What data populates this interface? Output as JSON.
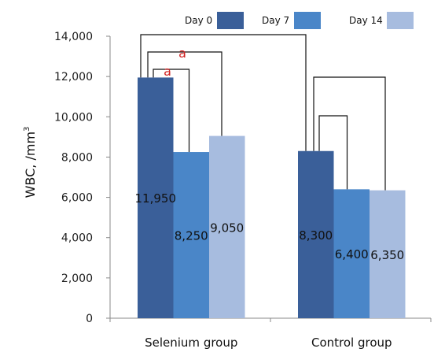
{
  "chart_data": {
    "type": "bar",
    "categories": [
      "Selenium   group",
      "Control   group"
    ],
    "series": [
      {
        "name": "Day 0",
        "values": [
          11950,
          8300
        ],
        "labels": [
          "11,950",
          "8,300"
        ],
        "color": "#3a5f99"
      },
      {
        "name": "Day 7",
        "values": [
          8250,
          6400
        ],
        "labels": [
          "8,250",
          "6,400"
        ],
        "color": "#4a86c8"
      },
      {
        "name": "Day 14",
        "values": [
          9050,
          6350
        ],
        "labels": [
          "9,050",
          "6,350"
        ],
        "color": "#a7bcdf"
      }
    ],
    "ylabel_main": "WBC, /mm",
    "ylabel_sup": "3",
    "ylim": [
      0,
      14000
    ],
    "yticks": [
      "0",
      "2,000",
      "4,000",
      "6,000",
      "8,000",
      "10,000",
      "12,000",
      "14,000"
    ],
    "legend_position": "top-right",
    "grid": false,
    "significance_labels": [
      {
        "text": "a",
        "group": 0,
        "from": 0,
        "to": 1
      },
      {
        "text": "a",
        "group": 0,
        "from": 0,
        "to": 2
      }
    ]
  }
}
